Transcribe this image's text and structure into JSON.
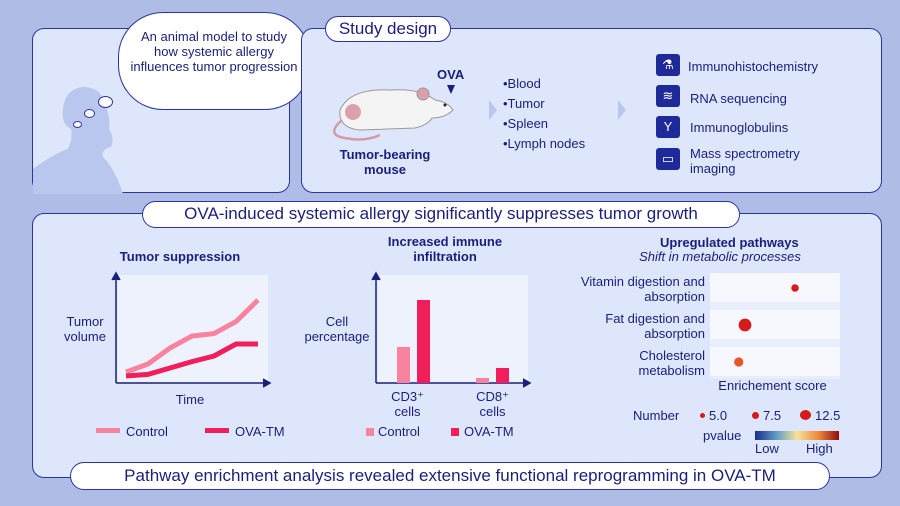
{
  "thought_bubble": "An animal model to study how systemic allergy influences tumor progression",
  "study_design": {
    "title": "Study design",
    "injection_label": "OVA",
    "mouse_label": "Tumor-bearing mouse",
    "samples": [
      "•Blood",
      "•Tumor",
      "•Spleen",
      "•Lymph nodes"
    ],
    "methods": [
      {
        "label": "Immunohistochemistry",
        "icon": "microscope-icon"
      },
      {
        "label": "RNA sequencing",
        "icon": "dna-icon"
      },
      {
        "label": "Immunoglobulins",
        "icon": "antibody-icon"
      },
      {
        "label": "Mass spectrometry imaging",
        "icon": "monitor-icon"
      }
    ]
  },
  "results": {
    "title": "OVA-induced systemic allergy significantly suppresses tumor growth",
    "footer": "Pathway enrichment analysis revealed extensive functional reprogramming in OVA-TM"
  },
  "colors": {
    "control": "#f7839e",
    "ova_tm": "#f01e5a",
    "accent": "#1a1f7a"
  },
  "chart_data": [
    {
      "type": "line",
      "title": "Tumor suppression",
      "xlabel": "Time",
      "ylabel": "Tumor volume",
      "legend_position": "bottom",
      "x": [
        0,
        1,
        2,
        3,
        4,
        5,
        6
      ],
      "series": [
        {
          "name": "Control",
          "values": [
            1,
            2,
            4,
            5.5,
            5.8,
            7.3,
            10
          ]
        },
        {
          "name": "OVA-TM",
          "values": [
            0.5,
            0.7,
            1.5,
            2.3,
            3,
            4.5,
            4.5
          ]
        }
      ]
    },
    {
      "type": "bar",
      "title": "Increased immune infiltration",
      "ylabel": "Cell percentage",
      "legend_position": "bottom",
      "categories": [
        "CD3⁺ cells",
        "CD8⁺ cells"
      ],
      "series": [
        {
          "name": "Control",
          "values": [
            36,
            5
          ]
        },
        {
          "name": "OVA-TM",
          "values": [
            83,
            15
          ]
        }
      ]
    },
    {
      "type": "scatter",
      "title": "Upregulated pathways",
      "subtitle": "Shift in metabolic processes",
      "xlabel": "Enrichement score",
      "categories": [
        "Vitamin digestion and absorption",
        "Fat digestion and absorption",
        "Cholesterol metabolism"
      ],
      "enrichment": [
        0.6,
        0.2,
        0.15
      ],
      "number": [
        5.0,
        12.5,
        7.5
      ],
      "pvalue_level": [
        "high",
        "high",
        "medium"
      ],
      "size_legend": {
        "title": "Number",
        "values": [
          "5.0",
          "7.5",
          "12.5"
        ]
      },
      "color_legend": {
        "title": "pvalue",
        "low": "Low",
        "high": "High"
      }
    }
  ]
}
